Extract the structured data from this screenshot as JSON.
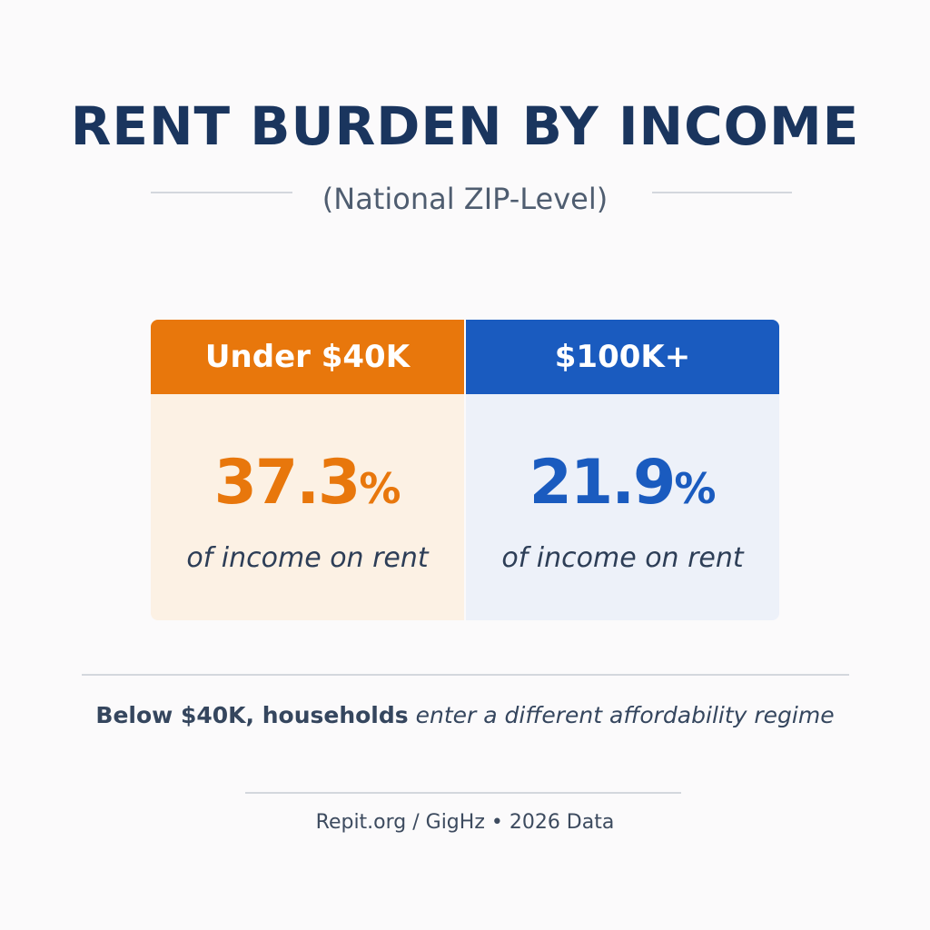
{
  "header": {
    "title": "RENT BURDEN BY INCOME",
    "subtitle": "(National ZIP-Level)"
  },
  "cards": [
    {
      "label": "Under $40K",
      "value": 37.3,
      "unit": "%",
      "caption": "of income on rent"
    },
    {
      "label": "$100K+",
      "value": 21.9,
      "unit": "%",
      "caption": "of income on rent"
    }
  ],
  "note": {
    "bold": "Below $40K, households",
    "italic": "enter a different affordability regime"
  },
  "source": "Repit.org / GigHz • 2026 Data"
}
